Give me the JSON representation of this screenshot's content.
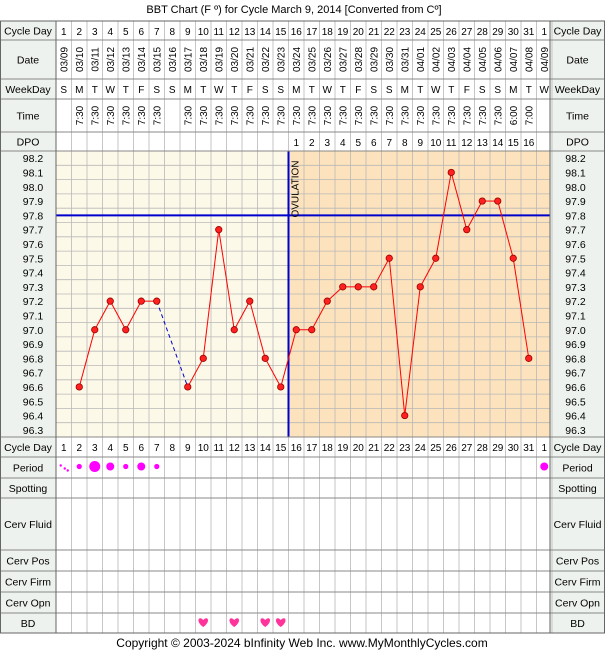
{
  "title": "BBT Chart (F º) for Cycle March 9, 2014  [Converted from Cº]",
  "copyright": "Copyright © 2003-2024 bInfinity Web Inc.     www.MyMonthlyCycles.com",
  "row_labels": {
    "cycle_day": "Cycle Day",
    "date": "Date",
    "weekday": "WeekDay",
    "time": "Time",
    "dpo": "DPO",
    "period": "Period",
    "spotting": "Spotting",
    "cerv_fluid": "Cerv Fluid",
    "cerv_pos": "Cerv Pos",
    "cerv_firm": "Cerv Firm",
    "cerv_opn": "Cerv Opn",
    "bd": "BD"
  },
  "ovulation_label": "OVULATION",
  "colors": {
    "line": "#ff0000",
    "coverline": "#0000cc",
    "ovulation_line": "#0000cc",
    "pre_ovulation_bg": "#fdf9e9",
    "post_ovulation_bg": "#fde3bd",
    "grid": "#b8b8b8",
    "period": "#ff00ff",
    "bd_heart": "#ff3399",
    "label_bg": "#eef2ee"
  },
  "chart_data": {
    "type": "line",
    "title": "BBT Chart (F º) for Cycle March 9, 2014  [Converted from Cº]",
    "cycle_days": [
      "1",
      "2",
      "3",
      "4",
      "5",
      "6",
      "7",
      "8",
      "9",
      "10",
      "11",
      "12",
      "13",
      "14",
      "15",
      "16",
      "17",
      "18",
      "19",
      "20",
      "21",
      "22",
      "23",
      "24",
      "25",
      "26",
      "27",
      "28",
      "29",
      "30",
      "31",
      "1"
    ],
    "dates": [
      "03/09",
      "03/10",
      "03/11",
      "03/12",
      "03/13",
      "03/14",
      "03/15",
      "03/16",
      "03/17",
      "03/18",
      "03/19",
      "03/20",
      "03/21",
      "03/22",
      "03/23",
      "03/24",
      "03/25",
      "03/26",
      "03/27",
      "03/28",
      "03/29",
      "03/30",
      "03/31",
      "04/01",
      "04/02",
      "04/03",
      "04/04",
      "04/05",
      "04/06",
      "04/07",
      "04/08",
      "04/09"
    ],
    "weekdays": [
      "S",
      "M",
      "T",
      "W",
      "T",
      "F",
      "S",
      "S",
      "M",
      "T",
      "W",
      "T",
      "F",
      "S",
      "S",
      "M",
      "T",
      "W",
      "T",
      "F",
      "S",
      "S",
      "M",
      "T",
      "W",
      "T",
      "F",
      "S",
      "S",
      "M",
      "T",
      "W"
    ],
    "times": [
      "",
      "7:30",
      "7:30",
      "7:30",
      "7:30",
      "7:30",
      "7:30",
      "",
      "7:30",
      "7:30",
      "7:30",
      "7:30",
      "7:30",
      "7:30",
      "7:30",
      "7:30",
      "7:30",
      "7:30",
      "7:30",
      "7:30",
      "7:30",
      "7:30",
      "7:30",
      "7:30",
      "7:30",
      "7:30",
      "7:30",
      "7:30",
      "7:30",
      "6:00",
      "7:00",
      ""
    ],
    "dpo": [
      "",
      "",
      "",
      "",
      "",
      "",
      "",
      "",
      "",
      "",
      "",
      "",
      "",
      "",
      "",
      "1",
      "2",
      "3",
      "4",
      "5",
      "6",
      "7",
      "8",
      "9",
      "10",
      "11",
      "12",
      "13",
      "14",
      "15",
      "16",
      ""
    ],
    "temperatures": [
      null,
      96.6,
      97.0,
      97.2,
      97.0,
      97.2,
      97.2,
      null,
      96.6,
      96.8,
      97.7,
      97.0,
      97.2,
      96.8,
      96.6,
      97.0,
      97.0,
      97.2,
      97.3,
      97.3,
      97.3,
      97.5,
      96.4,
      97.3,
      97.5,
      98.1,
      97.7,
      97.9,
      97.9,
      97.5,
      96.8,
      null
    ],
    "y_ticks": [
      "98.2",
      "98.1",
      "98.0",
      "97.9",
      "97.8",
      "97.7",
      "97.6",
      "97.5",
      "97.4",
      "97.3",
      "97.2",
      "97.1",
      "97.0",
      "96.9",
      "96.8",
      "96.7",
      "96.6",
      "96.5",
      "96.4",
      "96.3"
    ],
    "ylim": [
      96.3,
      98.2
    ],
    "coverline": 97.8,
    "ovulation_day_index": 14,
    "period_marks": [
      {
        "day_index": 0,
        "size": "spot"
      },
      {
        "day_index": 1,
        "size": "small"
      },
      {
        "day_index": 2,
        "size": "large"
      },
      {
        "day_index": 3,
        "size": "medium"
      },
      {
        "day_index": 4,
        "size": "small"
      },
      {
        "day_index": 5,
        "size": "medium"
      },
      {
        "day_index": 6,
        "size": "small"
      },
      {
        "day_index": 31,
        "size": "medium"
      }
    ],
    "bd_days": [
      9,
      11,
      13,
      14
    ]
  }
}
